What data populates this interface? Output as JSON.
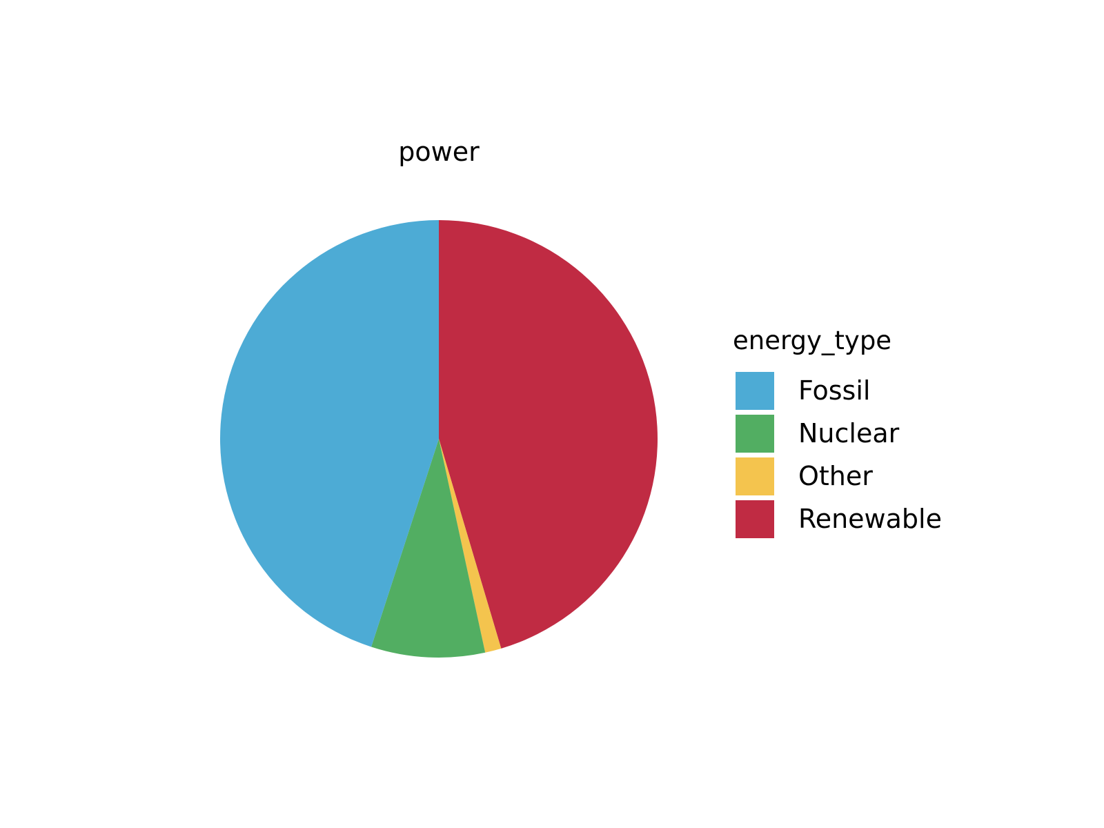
{
  "chart_data": {
    "type": "pie",
    "title": "power",
    "start_angle_deg": 0,
    "direction": "clockwise",
    "slices": [
      {
        "label": "Renewable",
        "value": 45.4,
        "color": "#C02B43"
      },
      {
        "label": "Other",
        "value": 1.2,
        "color": "#F4C44E"
      },
      {
        "label": "Nuclear",
        "value": 8.4,
        "color": "#52AE62"
      },
      {
        "label": "Fossil",
        "value": 45.0,
        "color": "#4DABD5"
      }
    ],
    "legend": {
      "title": "energy_type",
      "placement": "right",
      "items": [
        {
          "label": "Fossil",
          "color": "#4DABD5"
        },
        {
          "label": "Nuclear",
          "color": "#52AE62"
        },
        {
          "label": "Other",
          "color": "#F4C44E"
        },
        {
          "label": "Renewable",
          "color": "#C02B43"
        }
      ]
    }
  }
}
